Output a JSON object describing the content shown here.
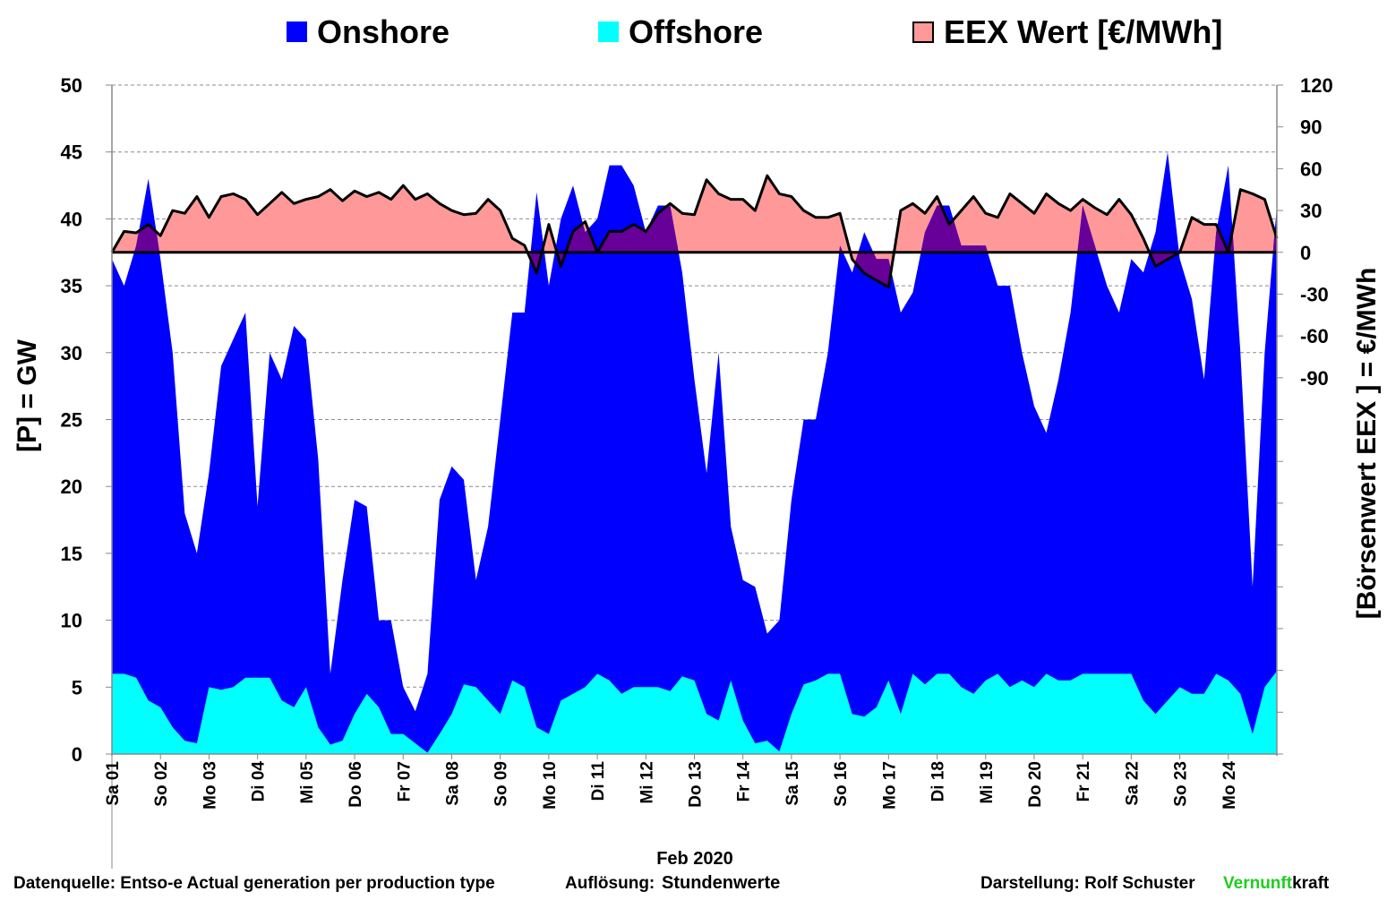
{
  "chart_data": {
    "type": "area",
    "legend": [
      {
        "label": "Onshore",
        "color": "#0000FF"
      },
      {
        "label": "Offshore",
        "color": "#00FFFF"
      },
      {
        "label": "EEX Wert [€/MWh]",
        "color": "#FF9999"
      }
    ],
    "legend_placement": "top",
    "ylabel_left": "[P]  = GW",
    "ylabel_right": "[Börsenwert  EEX ]  = €/MWh",
    "xlabel": "Feb 2020",
    "ylim_left": [
      0,
      50
    ],
    "ylim_right": [
      -360,
      120
    ],
    "left_ticks": [
      "0",
      "5",
      "10",
      "15",
      "20",
      "25",
      "30",
      "35",
      "40",
      "45",
      "50"
    ],
    "right_ticks": [
      "120",
      "90",
      "60",
      "30",
      "0",
      "-30",
      "-60",
      "-90"
    ],
    "right_ticks_negative_color": "#FF0000",
    "overlap_color": "#660099",
    "grid": true,
    "x_range_days": [
      0,
      24
    ],
    "time_step_hours": 6,
    "x_tick_labels": [
      "Sa 01",
      "So 02",
      "Mo 03",
      "Di 04",
      "Mi 05",
      "Do 06",
      "Fr 07",
      "Sa 08",
      "So 09",
      "Mo 10",
      "Di 11",
      "Mi 12",
      "Do 13",
      "Fr 14",
      "Sa 15",
      "So 16",
      "Mo 17",
      "Di 18",
      "Mi 19",
      "Do 20",
      "Fr 21",
      "Sa 22",
      "So 23",
      "Mo 24"
    ],
    "series": [
      {
        "name": "Onshore+Offshore total (GW)",
        "values": [
          37,
          35,
          38,
          43,
          37,
          30,
          18,
          15,
          21,
          29,
          31,
          33,
          18.5,
          30,
          28,
          32,
          31,
          22,
          6,
          13,
          19,
          18.5,
          10,
          10,
          5,
          3.2,
          6,
          19,
          21.5,
          20.5,
          13,
          17,
          25,
          33,
          33,
          42,
          35,
          40,
          42.5,
          39,
          40,
          44,
          44,
          42.5,
          39,
          41,
          41,
          36,
          28,
          21,
          30,
          17,
          13,
          12.5,
          9,
          10,
          19,
          25,
          25,
          30,
          38,
          36,
          39,
          37,
          37,
          33,
          34.5,
          39,
          41,
          41,
          38,
          38,
          38,
          35,
          35,
          30,
          26,
          24,
          28,
          33,
          41,
          38,
          35,
          33,
          37,
          36,
          39,
          45,
          37,
          34,
          28,
          39,
          44,
          30,
          12.5,
          30,
          41
        ]
      },
      {
        "name": "Offshore (GW)",
        "values": [
          6,
          6,
          5.7,
          4,
          3.5,
          2,
          1,
          0.8,
          5,
          4.8,
          5,
          5.7,
          5.7,
          5.7,
          4,
          3.5,
          5,
          2,
          0.7,
          1,
          3,
          4.5,
          3.5,
          1.5,
          1.5,
          0.8,
          0.1,
          1.5,
          3,
          5.2,
          5,
          4,
          3,
          5.5,
          5,
          2,
          1.5,
          4,
          4.5,
          5,
          6,
          5.5,
          4.5,
          5,
          5,
          5,
          4.7,
          5.8,
          5.5,
          3,
          2.5,
          5.5,
          2.5,
          0.8,
          1,
          0.2,
          3,
          5.2,
          5.5,
          6,
          6,
          3,
          2.8,
          3.5,
          5.5,
          3,
          6,
          5.2,
          6,
          6,
          5,
          4.5,
          5.5,
          6,
          5,
          5.5,
          5,
          6,
          5.5,
          5.5,
          6,
          6,
          6,
          6,
          6,
          4,
          3,
          4,
          5,
          4.5,
          4.5,
          6,
          5.5,
          4.5,
          1.5,
          5,
          6.2
        ]
      },
      {
        "name": "EEX Wert (€/MWh)",
        "values": [
          0,
          15,
          14,
          20,
          12,
          30,
          28,
          40,
          25,
          40,
          42,
          38,
          27,
          35,
          43,
          35,
          38,
          40,
          45,
          37,
          44,
          40,
          43,
          38,
          48,
          38,
          42,
          35,
          30,
          27,
          28,
          38,
          30,
          10,
          5,
          -15,
          20,
          -10,
          15,
          22,
          0,
          15,
          15,
          20,
          15,
          28,
          35,
          28,
          27,
          52,
          42,
          38,
          38,
          30,
          55,
          42,
          40,
          30,
          25,
          25,
          28,
          -5,
          -15,
          -20,
          -25,
          30,
          35,
          28,
          40,
          20,
          30,
          40,
          28,
          25,
          42,
          35,
          28,
          42,
          35,
          30,
          38,
          32,
          27,
          38,
          27,
          10,
          -10,
          -5,
          0,
          25,
          20,
          20,
          0,
          45,
          42,
          38,
          10
        ]
      }
    ]
  },
  "footer": {
    "source": "Datenquelle: Entso-e  Actual generation per production type",
    "resolution_label": "Auflösung:",
    "resolution_value": "Stundenwerte",
    "author": "Darstellung:  Rolf Schuster",
    "brand_green": "Vernunft",
    "brand_black": "kraft",
    "brand_color": "#22CC22"
  }
}
